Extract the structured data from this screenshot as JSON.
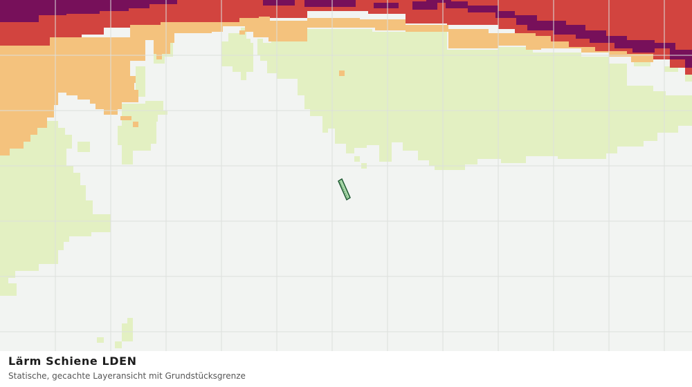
{
  "caption": {
    "title": "Lärm Schiene LDEN",
    "subtitle": "Statische, gecachte Layeransicht mit Grundstücksgrenze"
  },
  "map": {
    "basemap": "grid-tiles",
    "layer": "noise-rail-lden",
    "noise_band_colors": {
      "lowest": "#e3f0c2",
      "low": "#f4c27d",
      "medium": "#d2443f",
      "highest": "#77105a"
    },
    "background_color": "#f2f4f2",
    "grid_color": "#dcdfdc",
    "parcel": {
      "fill": "#a8d8a8",
      "stroke": "#1f5a33"
    }
  }
}
